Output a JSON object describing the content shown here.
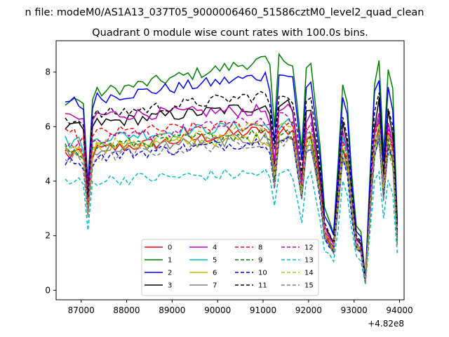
{
  "chart_data": {
    "type": "line",
    "title_line1": "n file: modeM0/AS1A13_037T05_9000006460_51586cztM0_level2_quad_clean",
    "title_line2": "Quadrant 0 module wise count rates with 100.0s bins.",
    "xlabel": "",
    "ylabel": "",
    "x_offset_label": "+4.82e8",
    "xlim": [
      86450,
      94100
    ],
    "ylim": [
      -0.35,
      9.15
    ],
    "x_ticks": [
      87000,
      88000,
      89000,
      90000,
      91000,
      92000,
      93000,
      94000
    ],
    "x_tick_labels": [
      "87000",
      "88000",
      "89000",
      "90000",
      "91000",
      "92000",
      "93000",
      "94000"
    ],
    "y_ticks": [
      0,
      2,
      4,
      6,
      8
    ],
    "y_tick_labels": [
      "0",
      "2",
      "4",
      "6",
      "8"
    ],
    "grid": false,
    "legend_position": "lower-center",
    "legend_columns": 4,
    "x_start": 86650,
    "x_step": 100,
    "profile": [
      1.0,
      0.98,
      1.0,
      0.98,
      0.95,
      0.55,
      0.97,
      1.0,
      1.0,
      1.0,
      1.0,
      1.0,
      1.0,
      1.0,
      1.0,
      1.0,
      1.0,
      1.0,
      1.0,
      1.0,
      1.0,
      1.0,
      1.0,
      1.0,
      1.0,
      1.0,
      1.0,
      1.0,
      1.0,
      1.0,
      1.0,
      1.0,
      1.0,
      1.0,
      1.0,
      1.0,
      1.0,
      1.0,
      1.0,
      1.0,
      1.0,
      1.0,
      1.0,
      1.0,
      1.0,
      0.95,
      0.7,
      1.0,
      1.0,
      1.0,
      0.98,
      0.8,
      0.6,
      0.95,
      0.97,
      0.8,
      0.62,
      0.35,
      0.3,
      0.25,
      0.55,
      0.9,
      0.8,
      0.5,
      0.28,
      0.25,
      0.05,
      0.5,
      0.9,
      1.0,
      0.6,
      0.95,
      0.85,
      0.3
    ],
    "colors": [
      "#ff0000",
      "#008000",
      "#0000ff",
      "#000000",
      "#bf00bf",
      "#00bfbf",
      "#bfbf00",
      "#808080",
      "#ff0000",
      "#008000",
      "#0000ff",
      "#000000",
      "#bf00bf",
      "#00bfbf",
      "#bfbf00",
      "#808080"
    ],
    "series": [
      {
        "name": "0",
        "level_start": 5.0,
        "level_end": 5.9,
        "dashed": false
      },
      {
        "name": "1",
        "level_start": 7.0,
        "level_end": 8.5,
        "dashed": false
      },
      {
        "name": "2",
        "level_start": 6.9,
        "level_end": 7.9,
        "dashed": false
      },
      {
        "name": "3",
        "level_start": 6.0,
        "level_end": 6.8,
        "dashed": false
      },
      {
        "name": "4",
        "level_start": 6.4,
        "level_end": 6.6,
        "dashed": false
      },
      {
        "name": "5",
        "level_start": 5.5,
        "level_end": 6.1,
        "dashed": false
      },
      {
        "name": "6",
        "level_start": 5.2,
        "level_end": 5.6,
        "dashed": false
      },
      {
        "name": "7",
        "level_start": 5.1,
        "level_end": 5.6,
        "dashed": false
      },
      {
        "name": "8",
        "level_start": 5.7,
        "level_end": 6.1,
        "dashed": true
      },
      {
        "name": "9",
        "level_start": 5.2,
        "level_end": 5.8,
        "dashed": true
      },
      {
        "name": "10",
        "level_start": 4.8,
        "level_end": 5.5,
        "dashed": true
      },
      {
        "name": "11",
        "level_start": 6.3,
        "level_end": 7.2,
        "dashed": true
      },
      {
        "name": "12",
        "level_start": 5.3,
        "level_end": 6.3,
        "dashed": true
      },
      {
        "name": "13",
        "level_start": 4.0,
        "level_end": 4.3,
        "dashed": true
      },
      {
        "name": "14",
        "level_start": 5.2,
        "level_end": 6.0,
        "dashed": true
      },
      {
        "name": "15",
        "level_start": 4.8,
        "level_end": 5.5,
        "dashed": true
      }
    ]
  }
}
